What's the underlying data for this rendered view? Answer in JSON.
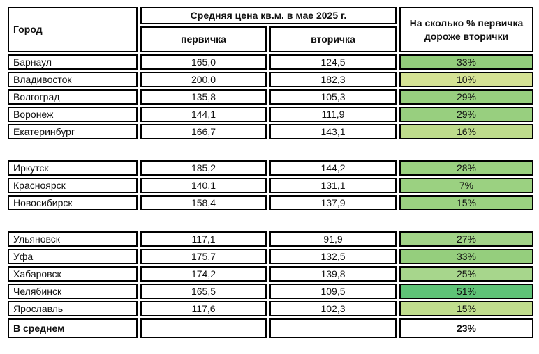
{
  "header": {
    "city": "Город",
    "price_group": "Средняя цена кв.м. в мае 2025 г.",
    "primary": "первичка",
    "secondary": "вторичка",
    "percent_diff": "На сколько % первичка дороже вторички"
  },
  "groups": [
    {
      "rows": [
        {
          "city": "Барнаул",
          "primary": "165,0",
          "secondary": "124,5",
          "percent": "33%",
          "percent_bg": "#93cd7c"
        },
        {
          "city": "Владивосток",
          "primary": "200,0",
          "secondary": "182,3",
          "percent": "10%",
          "percent_bg": "#d5e294"
        },
        {
          "city": "Волгоград",
          "primary": "135,8",
          "secondary": "105,3",
          "percent": "29%",
          "percent_bg": "#98cf7f"
        },
        {
          "city": "Воронеж",
          "primary": "144,1",
          "secondary": "111,9",
          "percent": "29%",
          "percent_bg": "#98cf7f"
        },
        {
          "city": "Екатеринбург",
          "primary": "166,7",
          "secondary": "143,1",
          "percent": "16%",
          "percent_bg": "#bedb8c"
        }
      ]
    },
    {
      "rows": [
        {
          "city": "Иркутск",
          "primary": "185,2",
          "secondary": "144,2",
          "percent": "28%",
          "percent_bg": "#9bd181"
        },
        {
          "city": "Красноярск",
          "primary": "140,1",
          "secondary": "131,1",
          "percent": "7%",
          "percent_bg": "#9bd181"
        },
        {
          "city": "Новосибирск",
          "primary": "158,4",
          "secondary": "137,9",
          "percent": "15%",
          "percent_bg": "#9bd181"
        }
      ]
    },
    {
      "rows": [
        {
          "city": "Ульяновск",
          "primary": "117,1",
          "secondary": "91,9",
          "percent": "27%",
          "percent_bg": "#a2d488"
        },
        {
          "city": "Уфа",
          "primary": "175,7",
          "secondary": "132,5",
          "percent": "33%",
          "percent_bg": "#95ce7d"
        },
        {
          "city": "Хабаровск",
          "primary": "174,2",
          "secondary": "139,8",
          "percent": "25%",
          "percent_bg": "#a7d68c"
        },
        {
          "city": "Челябинск",
          "primary": "165,5",
          "secondary": "109,5",
          "percent": "51%",
          "percent_bg": "#5fc377"
        },
        {
          "city": "Ярославль",
          "primary": "117,6",
          "secondary": "102,3",
          "percent": "15%",
          "percent_bg": "#c1dd8e"
        }
      ]
    }
  ],
  "total": {
    "label": "В среднем",
    "primary": "",
    "secondary": "",
    "percent": "23%",
    "percent_bg": "#ffffff"
  },
  "chart_data": {
    "type": "table",
    "title": "Средняя цена кв.м. в мае 2025 г.",
    "columns": [
      "Город",
      "первичка",
      "вторичка",
      "На сколько % первичка дороже вторички"
    ],
    "rows": [
      [
        "Барнаул",
        165.0,
        124.5,
        "33%"
      ],
      [
        "Владивосток",
        200.0,
        182.3,
        "10%"
      ],
      [
        "Волгоград",
        135.8,
        105.3,
        "29%"
      ],
      [
        "Воронеж",
        144.1,
        111.9,
        "29%"
      ],
      [
        "Екатеринбург",
        166.7,
        143.1,
        "16%"
      ],
      [
        "Иркутск",
        185.2,
        144.2,
        "28%"
      ],
      [
        "Красноярск",
        140.1,
        131.1,
        "7%"
      ],
      [
        "Новосибирск",
        158.4,
        137.9,
        "15%"
      ],
      [
        "Ульяновск",
        117.1,
        91.9,
        "27%"
      ],
      [
        "Уфа",
        175.7,
        132.5,
        "33%"
      ],
      [
        "Хабаровск",
        174.2,
        139.8,
        "25%"
      ],
      [
        "Челябинск",
        165.5,
        109.5,
        "51%"
      ],
      [
        "Ярославль",
        117.6,
        102.3,
        "15%"
      ]
    ],
    "total_row": [
      "В среднем",
      null,
      null,
      "23%"
    ],
    "notes": "green fill intensity marks percent difference; rows split into 3 visual groups by blank gaps"
  }
}
